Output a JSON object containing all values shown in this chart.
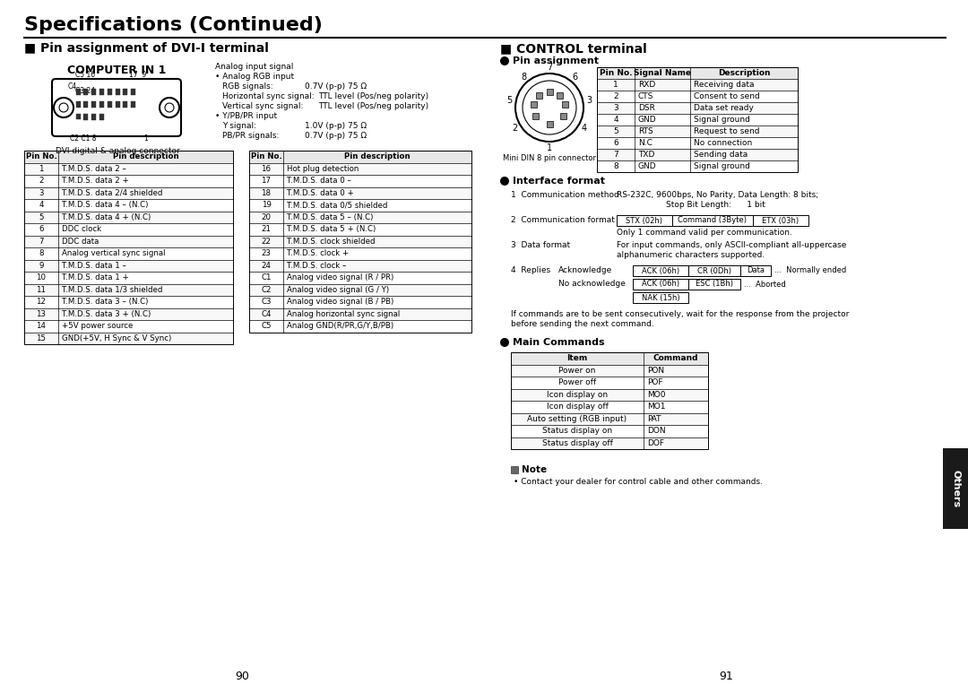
{
  "page_title": "Specifications (Continued)",
  "left_section_title": "■ Pin assignment of DVI-I terminal",
  "right_section_title": "■ CONTROL terminal",
  "bg_color": "#ffffff",
  "text_color": "#000000",
  "dvi_table_left": {
    "headers": [
      "Pin No.",
      "Pin description"
    ],
    "rows": [
      [
        "1",
        "T.M.D.S. data 2 –"
      ],
      [
        "2",
        "T.M.D.S. data 2 +"
      ],
      [
        "3",
        "T.M.D.S. data 2/4 shielded"
      ],
      [
        "4",
        "T.M.D.S. data 4 – (N.C)"
      ],
      [
        "5",
        "T.M.D.S. data 4 + (N.C)"
      ],
      [
        "6",
        "DDC clock"
      ],
      [
        "7",
        "DDC data"
      ],
      [
        "8",
        "Analog vertical sync signal"
      ],
      [
        "9",
        "T.M.D.S. data 1 –"
      ],
      [
        "10",
        "T.M.D.S. data 1 +"
      ],
      [
        "11",
        "T.M.D.S. data 1/3 shielded"
      ],
      [
        "12",
        "T.M.D.S. data 3 – (N.C)"
      ],
      [
        "13",
        "T.M.D.S. data 3 + (N.C)"
      ],
      [
        "14",
        "+5V power source"
      ],
      [
        "15",
        "GND(+5V, H Sync & V Sync)"
      ]
    ]
  },
  "dvi_table_right": {
    "headers": [
      "Pin No.",
      "Pin description"
    ],
    "rows": [
      [
        "16",
        "Hot plug detection"
      ],
      [
        "17",
        "T.M.D.S. data 0 –"
      ],
      [
        "18",
        "T.M.D.S. data 0 +"
      ],
      [
        "19",
        "T.M.D.S. data 0/5 shielded"
      ],
      [
        "20",
        "T.M.D.S. data 5 – (N.C)"
      ],
      [
        "21",
        "T.M.D.S. data 5 + (N.C)"
      ],
      [
        "22",
        "T.M.D.S. clock shielded"
      ],
      [
        "23",
        "T.M.D.S. clock +"
      ],
      [
        "24",
        "T.M.D.S. clock –"
      ],
      [
        "C1",
        "Analog video signal (R / PR)"
      ],
      [
        "C2",
        "Analog video signal (G / Y)"
      ],
      [
        "C3",
        "Analog video signal (B / PB)"
      ],
      [
        "C4",
        "Analog horizontal sync signal"
      ],
      [
        "C5",
        "Analog GND(R/PR,G/Y,B/PB)"
      ]
    ]
  },
  "control_pin_table": {
    "headers": [
      "Pin No.",
      "Signal Name",
      "Description"
    ],
    "rows": [
      [
        "1",
        "RXD",
        "Receiving data"
      ],
      [
        "2",
        "CTS",
        "Consent to send"
      ],
      [
        "3",
        "DSR",
        "Data set ready"
      ],
      [
        "4",
        "GND",
        "Signal ground"
      ],
      [
        "5",
        "RTS",
        "Request to send"
      ],
      [
        "6",
        "N.C",
        "No connection"
      ],
      [
        "7",
        "TXD",
        "Sending data"
      ],
      [
        "8",
        "GND",
        "Signal ground"
      ]
    ]
  },
  "main_commands_table": {
    "headers": [
      "Item",
      "Command"
    ],
    "rows": [
      [
        "Power on",
        "PON"
      ],
      [
        "Power off",
        "POF"
      ],
      [
        "Icon display on",
        "MO0"
      ],
      [
        "Icon display off",
        "MO1"
      ],
      [
        "Auto setting (RGB input)",
        "PAT"
      ],
      [
        "Status display on",
        "DON"
      ],
      [
        "Status display off",
        "DOF"
      ]
    ]
  },
  "page_numbers": [
    "90",
    "91"
  ],
  "others_tab_color": "#1a1a1a"
}
